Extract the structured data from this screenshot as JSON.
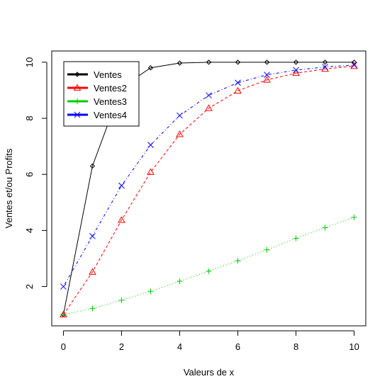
{
  "chart_data": {
    "type": "line",
    "title": "",
    "xlabel": "Valeurs de x",
    "ylabel": "Ventes et/ou Profits",
    "xlim": [
      -0.4,
      10.4
    ],
    "ylim": [
      0.6,
      10.4
    ],
    "xticks": [
      0,
      2,
      4,
      6,
      8,
      10
    ],
    "yticks": [
      2,
      4,
      6,
      8,
      10
    ],
    "x": [
      0,
      1,
      2,
      3,
      4,
      5,
      6,
      7,
      8,
      9,
      10
    ],
    "legend_position": "top-left",
    "grid": false,
    "series": [
      {
        "name": "Ventes",
        "color": "#000000",
        "dash": "solid",
        "marker": "diamond",
        "values": [
          1,
          6.3,
          9.1,
          9.8,
          9.97,
          10.0,
          10.0,
          10.0,
          10.0,
          10.0,
          10.0
        ]
      },
      {
        "name": "Ventes2",
        "color": "#ff0000",
        "dash": "dashed",
        "marker": "triangle",
        "values": [
          1,
          2.52,
          4.37,
          6.08,
          7.43,
          8.36,
          8.98,
          9.37,
          9.61,
          9.76,
          9.86
        ]
      },
      {
        "name": "Ventes3",
        "color": "#00cc00",
        "dash": "dotted",
        "marker": "plus",
        "values": [
          1,
          1.22,
          1.51,
          1.83,
          2.19,
          2.55,
          2.92,
          3.31,
          3.72,
          4.1,
          4.47
        ]
      },
      {
        "name": "Ventes4",
        "color": "#0000ff",
        "dash": "dotdash",
        "marker": "x",
        "values": [
          2,
          3.8,
          5.6,
          7.05,
          8.1,
          8.82,
          9.27,
          9.55,
          9.72,
          9.83,
          9.9
        ]
      }
    ]
  }
}
